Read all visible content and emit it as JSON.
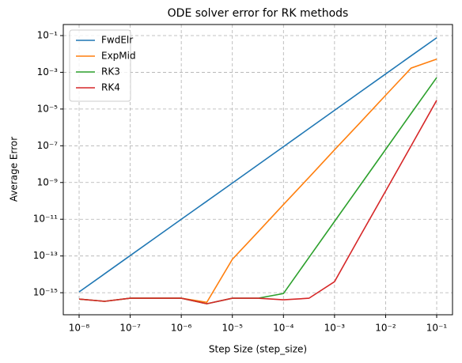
{
  "chart_data": {
    "type": "line",
    "title": "ODE solver error for RK methods",
    "xlabel": "Step Size (step_size)",
    "ylabel": "Average Error",
    "xscale": "log",
    "yscale": "log",
    "grid": true,
    "legend": "upper left",
    "x": [
      1e-08,
      3.16e-08,
      1e-07,
      3.16e-07,
      1e-06,
      3.16e-06,
      1e-05,
      3.16e-05,
      0.0001,
      0.000316,
      0.001,
      0.00316,
      0.01,
      0.0316,
      0.1
    ],
    "series": [
      {
        "name": "FwdElr",
        "color": "#1f77b4",
        "values": [
          1.1e-15,
          1.07e-14,
          1.05e-13,
          1.02e-12,
          1e-11,
          9.6e-11,
          9.3e-10,
          9.1e-09,
          8.9e-08,
          8.7e-07,
          8.5e-06,
          8.3e-05,
          0.00081,
          0.0079,
          0.076
        ]
      },
      {
        "name": "ExpMid",
        "color": "#ff7f0e",
        "values": [
          4.5e-16,
          3.4e-16,
          5e-16,
          5e-16,
          5e-16,
          3e-16,
          6.6e-14,
          2e-12,
          6.3e-11,
          1.9e-09,
          6e-08,
          1.8e-06,
          5.6e-05,
          0.0017,
          0.0052
        ]
      },
      {
        "name": "RK3",
        "color": "#2ca02c",
        "values": [
          4.5e-16,
          3.4e-16,
          5e-16,
          5e-16,
          5e-16,
          2.5e-16,
          5e-16,
          5e-16,
          9e-16,
          8.3e-14,
          7.6e-12,
          6.9e-10,
          6.3e-08,
          5.8e-06,
          0.00052
        ]
      },
      {
        "name": "RK4",
        "color": "#d62728",
        "values": [
          4.5e-16,
          3.4e-16,
          5e-16,
          5e-16,
          5e-16,
          2.5e-16,
          5e-16,
          5e-16,
          4.1e-16,
          5e-16,
          4e-15,
          1.2e-12,
          3.4e-10,
          1e-07,
          3e-05
        ]
      }
    ],
    "xlim": [
      4.9e-09,
      0.204
    ],
    "ylim": [
      6.3e-17,
      0.4
    ],
    "xticks": [
      {
        "value": 1e-08,
        "label": "10⁻⁸"
      },
      {
        "value": 1e-07,
        "label": "10⁻⁷"
      },
      {
        "value": 1e-06,
        "label": "10⁻⁶"
      },
      {
        "value": 1e-05,
        "label": "10⁻⁵"
      },
      {
        "value": 0.0001,
        "label": "10⁻⁴"
      },
      {
        "value": 0.001,
        "label": "10⁻³"
      },
      {
        "value": 0.01,
        "label": "10⁻²"
      },
      {
        "value": 0.1,
        "label": "10⁻¹"
      }
    ],
    "yticks": [
      {
        "value": 1e-15,
        "label": "10⁻¹⁵"
      },
      {
        "value": 1e-13,
        "label": "10⁻¹³"
      },
      {
        "value": 1e-11,
        "label": "10⁻¹¹"
      },
      {
        "value": 1e-09,
        "label": "10⁻⁹"
      },
      {
        "value": 1e-07,
        "label": "10⁻⁷"
      },
      {
        "value": 1e-05,
        "label": "10⁻⁵"
      },
      {
        "value": 0.001,
        "label": "10⁻³"
      },
      {
        "value": 0.1,
        "label": "10⁻¹"
      }
    ]
  }
}
